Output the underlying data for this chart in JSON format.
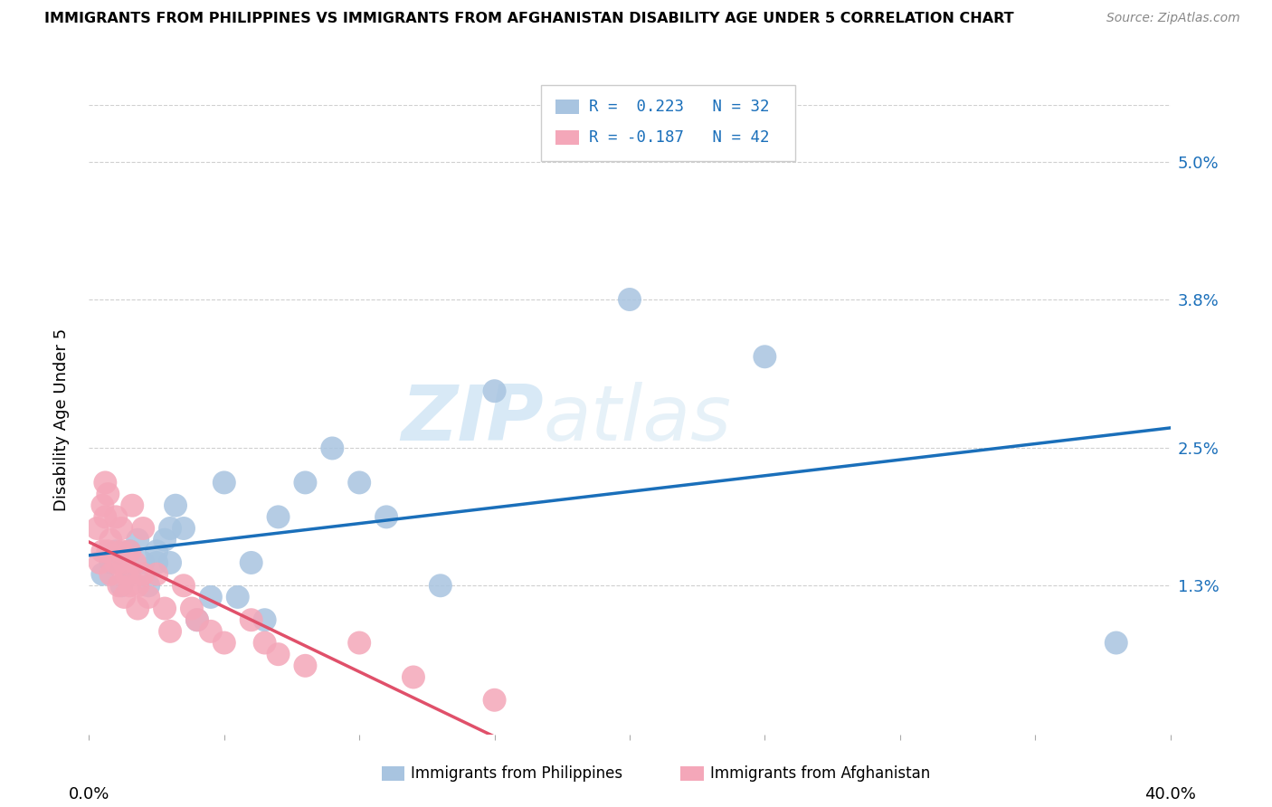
{
  "title": "IMMIGRANTS FROM PHILIPPINES VS IMMIGRANTS FROM AFGHANISTAN DISABILITY AGE UNDER 5 CORRELATION CHART",
  "source": "Source: ZipAtlas.com",
  "ylabel": "Disability Age Under 5",
  "ytick_labels": [
    "1.3%",
    "2.5%",
    "3.8%",
    "5.0%"
  ],
  "ytick_values": [
    0.013,
    0.025,
    0.038,
    0.05
  ],
  "xlim": [
    0.0,
    0.4
  ],
  "ylim": [
    0.0,
    0.055
  ],
  "color_blue": "#a8c4e0",
  "color_pink": "#f4a7b9",
  "line_blue": "#1a6fba",
  "line_pink": "#e0506a",
  "watermark_zip": "ZIP",
  "watermark_atlas": "atlas",
  "philippines_x": [
    0.005,
    0.008,
    0.01,
    0.012,
    0.015,
    0.015,
    0.018,
    0.02,
    0.022,
    0.025,
    0.025,
    0.028,
    0.03,
    0.03,
    0.032,
    0.035,
    0.04,
    0.045,
    0.05,
    0.055,
    0.06,
    0.065,
    0.07,
    0.08,
    0.09,
    0.1,
    0.11,
    0.13,
    0.15,
    0.2,
    0.25,
    0.38
  ],
  "philippines_y": [
    0.014,
    0.015,
    0.016,
    0.013,
    0.016,
    0.014,
    0.017,
    0.015,
    0.013,
    0.016,
    0.015,
    0.017,
    0.018,
    0.015,
    0.02,
    0.018,
    0.01,
    0.012,
    0.022,
    0.012,
    0.015,
    0.01,
    0.019,
    0.022,
    0.025,
    0.022,
    0.019,
    0.013,
    0.03,
    0.038,
    0.033,
    0.008
  ],
  "afghanistan_x": [
    0.003,
    0.004,
    0.005,
    0.005,
    0.006,
    0.006,
    0.007,
    0.007,
    0.008,
    0.008,
    0.01,
    0.01,
    0.011,
    0.012,
    0.012,
    0.013,
    0.013,
    0.014,
    0.015,
    0.015,
    0.016,
    0.017,
    0.018,
    0.018,
    0.02,
    0.02,
    0.022,
    0.025,
    0.028,
    0.03,
    0.035,
    0.038,
    0.04,
    0.045,
    0.05,
    0.06,
    0.065,
    0.07,
    0.08,
    0.1,
    0.12,
    0.15
  ],
  "afghanistan_y": [
    0.018,
    0.015,
    0.02,
    0.016,
    0.022,
    0.019,
    0.016,
    0.021,
    0.014,
    0.017,
    0.019,
    0.015,
    0.013,
    0.016,
    0.018,
    0.012,
    0.015,
    0.014,
    0.016,
    0.013,
    0.02,
    0.015,
    0.013,
    0.011,
    0.018,
    0.014,
    0.012,
    0.014,
    0.011,
    0.009,
    0.013,
    0.011,
    0.01,
    0.009,
    0.008,
    0.01,
    0.008,
    0.007,
    0.006,
    0.008,
    0.005,
    0.003
  ]
}
